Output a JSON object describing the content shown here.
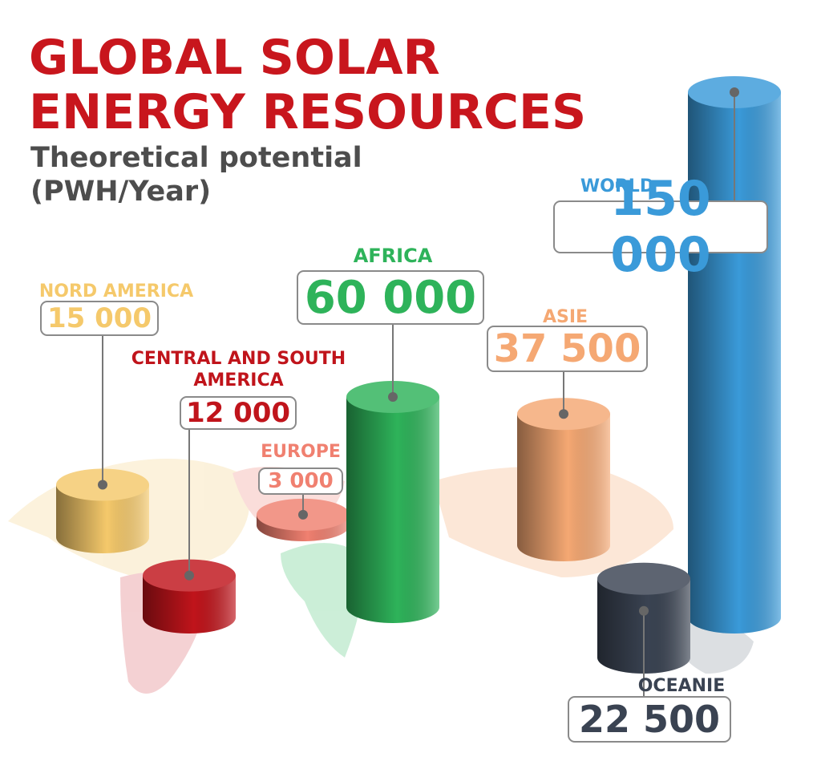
{
  "chart_data": {
    "type": "bar",
    "title": "GLOBAL SOLAR ENERGY RESOURCES",
    "subtitle": "Theoretical potential (PWH/Year)",
    "categories": [
      "NORD AMERICA",
      "CENTRAL AND SOUTH AMERICA",
      "EUROPE",
      "AFRICA",
      "ASIE",
      "OCEANIE",
      "WORLD"
    ],
    "values": [
      15000,
      12000,
      3000,
      60000,
      37500,
      22500,
      150000
    ],
    "value_labels": [
      "15 000",
      "12 000",
      "3 000",
      "60 000",
      "37 500",
      "22 500",
      "150 000"
    ],
    "colors": [
      "#f5c96b",
      "#c0141b",
      "#f08070",
      "#2eb35a",
      "#f5a873",
      "#3a4352",
      "#3a9ad9"
    ]
  }
}
